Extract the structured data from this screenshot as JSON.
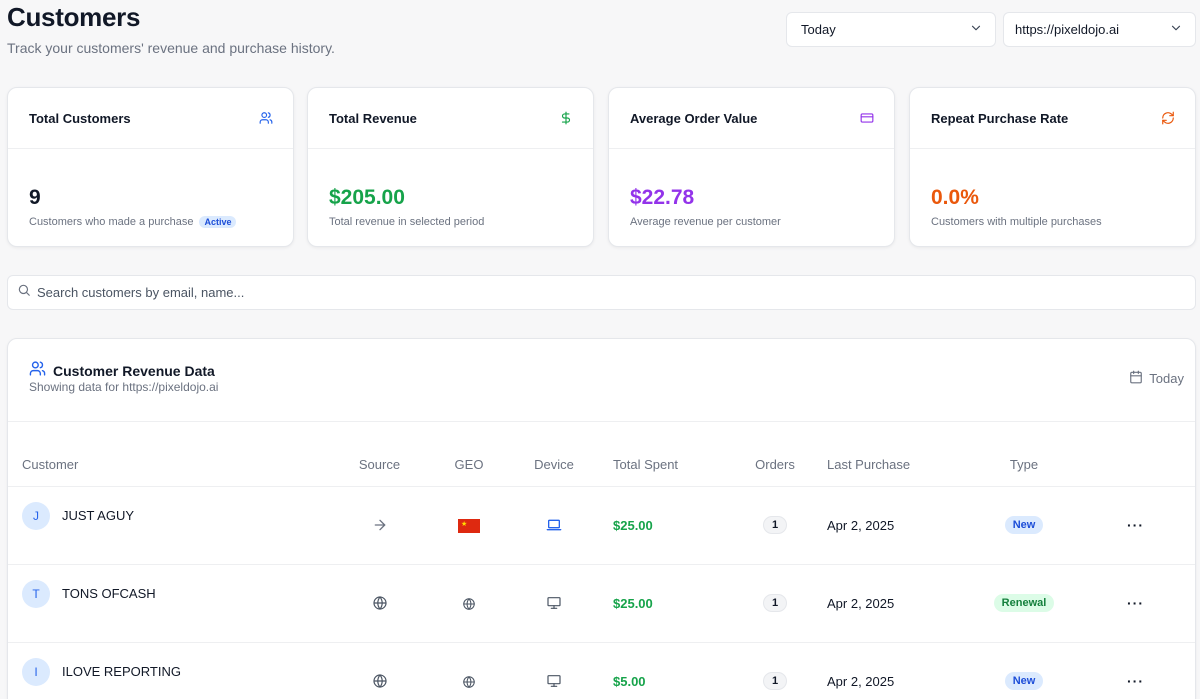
{
  "header": {
    "title": "Customers",
    "subtitle": "Track your customers' revenue and purchase history."
  },
  "filters": {
    "period": "Today",
    "site": "https://pixeldojo.ai"
  },
  "cards": [
    {
      "title": "Total Customers",
      "value": "9",
      "caption": "Customers who made a purchase",
      "badge": "Active",
      "value_color": "#111827",
      "icon": "users-icon",
      "icon_color": "#2563eb"
    },
    {
      "title": "Total Revenue",
      "value": "$205.00",
      "caption": "Total revenue in selected period",
      "value_color": "#16a34a",
      "icon": "dollar-icon",
      "icon_color": "#16a34a"
    },
    {
      "title": "Average Order Value",
      "value": "$22.78",
      "caption": "Average revenue per customer",
      "value_color": "#9333ea",
      "icon": "credit-card-icon",
      "icon_color": "#9333ea"
    },
    {
      "title": "Repeat Purchase Rate",
      "value": "0.0%",
      "caption": "Customers with multiple purchases",
      "value_color": "#ea580c",
      "icon": "refresh-icon",
      "icon_color": "#ea580c"
    }
  ],
  "search": {
    "placeholder": "Search customers by email, name..."
  },
  "panel": {
    "title": "Customer Revenue Data",
    "subtitle": "Showing data for https://pixeldojo.ai",
    "date_label": "Today"
  },
  "table": {
    "columns": [
      "Customer",
      "Source",
      "GEO",
      "Device",
      "Total Spent",
      "Orders",
      "Last Purchase",
      "Type"
    ],
    "rows": [
      {
        "initial": "J",
        "name": "JUST AGUY",
        "source": "arrow-right-icon",
        "geo": "china-flag",
        "device": "laptop-icon",
        "spent": "$25.00",
        "orders": "1",
        "last": "Apr 2, 2025",
        "type": "New"
      },
      {
        "initial": "T",
        "name": "TONS OFCASH",
        "source": "globe-icon",
        "geo": "globe-icon",
        "device": "monitor-icon",
        "spent": "$25.00",
        "orders": "1",
        "last": "Apr 2, 2025",
        "type": "Renewal"
      },
      {
        "initial": "I",
        "name": "ILOVE REPORTING",
        "source": "globe-icon",
        "geo": "globe-icon",
        "device": "monitor-icon",
        "spent": "$5.00",
        "orders": "1",
        "last": "Apr 2, 2025",
        "type": "New"
      }
    ]
  },
  "colors": {
    "accent_blue": "#2563eb",
    "green": "#16a34a",
    "purple": "#9333ea",
    "orange": "#ea580c"
  }
}
